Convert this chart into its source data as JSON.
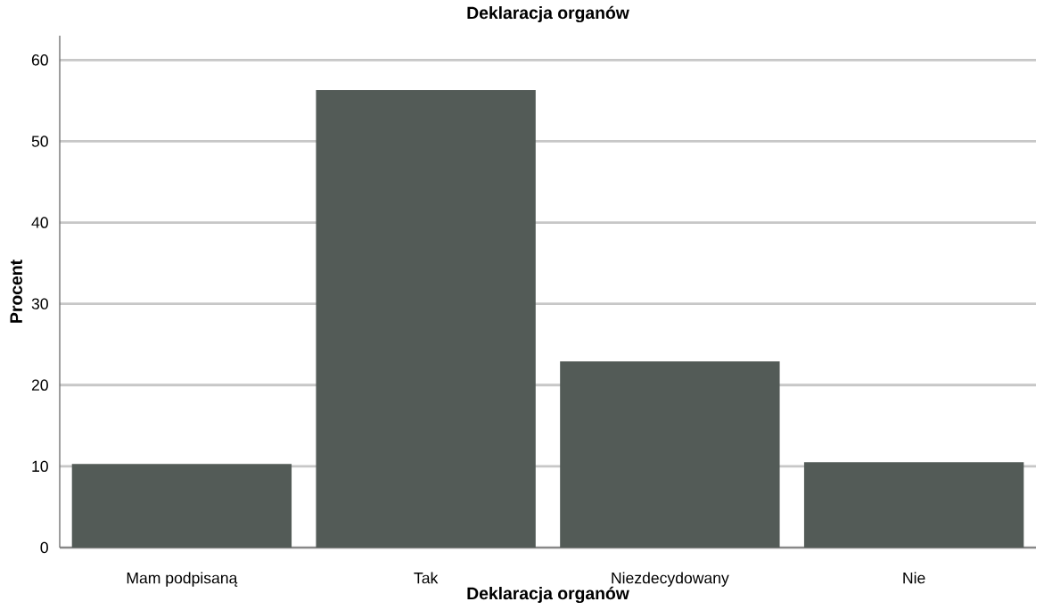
{
  "chart_data": {
    "type": "bar",
    "title": "Deklaracja organów",
    "xlabel": "Deklaracja organów",
    "ylabel": "Procent",
    "categories": [
      "Mam podpisaną",
      "Tak",
      "Niezdecydowany",
      "Nie"
    ],
    "values": [
      10.3,
      56.3,
      22.9,
      10.5
    ],
    "color": "#535b57",
    "ylim": [
      0,
      63
    ],
    "yticks": [
      0,
      10,
      20,
      30,
      40,
      50,
      60
    ],
    "grid": "y"
  }
}
